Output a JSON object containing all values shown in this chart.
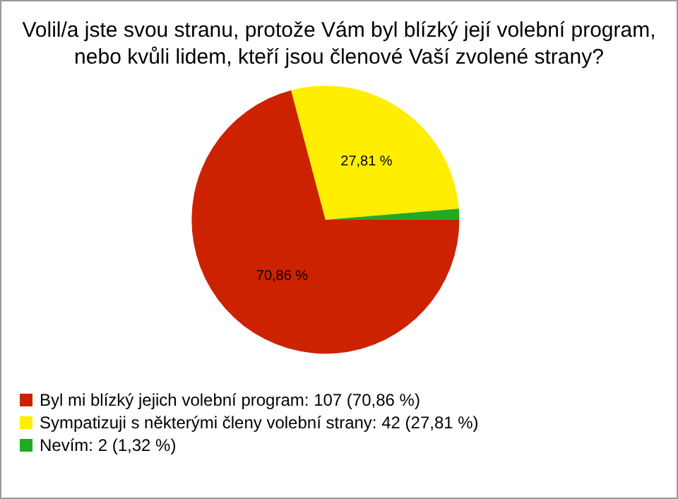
{
  "chart_data": {
    "type": "pie",
    "title": "Volil/a jste svou stranu, protože Vám byl blízký její volební program,\nnebo kvůli lidem, kteří jsou členové Vaší zvolené strany?",
    "categories": [
      "Byl mi blízký jejich volební program: 107 (70,86 %)",
      "Sympatizuji s některými členy volební strany: 42 (27,81 %)",
      "Nevím: 2 (1,32 %)"
    ],
    "values": [
      70.86,
      27.81,
      1.32
    ],
    "colors": [
      "#cc2200",
      "#ffee00",
      "#22aa22"
    ],
    "value_labels": [
      "70,86 %",
      "27,81 %",
      null
    ],
    "legend": "bottom left"
  }
}
